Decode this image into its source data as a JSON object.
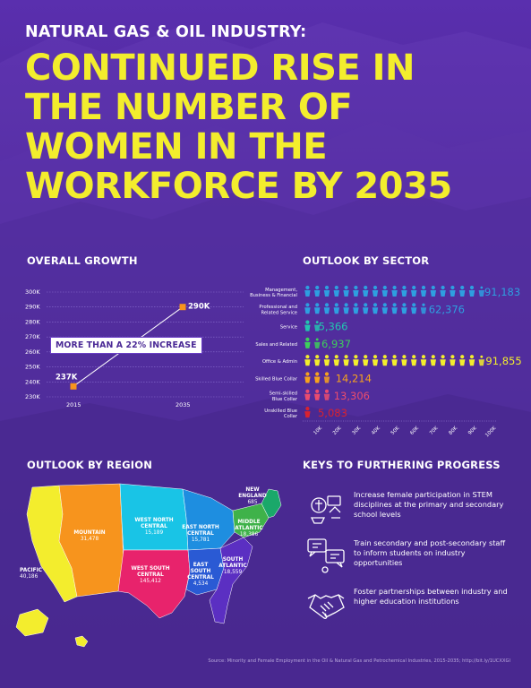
{
  "header": {
    "supertitle": "NATURAL GAS & OIL INDUSTRY:",
    "title_lines": [
      "CONTINUED RISE IN",
      "THE NUMBER OF",
      "WOMEN IN THE",
      "WORKFORCE BY 2035"
    ]
  },
  "colors": {
    "background": "#3d1f78",
    "title_yellow": "#f3ed2d",
    "growth_marker": "#f7941d"
  },
  "overall_growth": {
    "title": "OVERALL GROWTH",
    "callout": "MORE THAN A 22% INCREASE",
    "chart_data": {
      "type": "line",
      "x": [
        "2015",
        "2035"
      ],
      "values": [
        237000,
        290000
      ],
      "value_labels": [
        "237K",
        "290K"
      ],
      "yticks": [
        "300K",
        "290K",
        "280K",
        "270K",
        "260K",
        "250K",
        "240K",
        "230K"
      ],
      "ylim": [
        230000,
        300000
      ]
    }
  },
  "outlook_by_sector": {
    "title": "OUTLOOK BY SECTOR",
    "chart_data": {
      "type": "bar",
      "xticks": [
        "10K",
        "20K",
        "30K",
        "40K",
        "50K",
        "60K",
        "70K",
        "80K",
        "90K",
        "100K"
      ],
      "xlim": [
        0,
        100000
      ],
      "categories": [
        {
          "label": [
            "Management,",
            "Business & Financial"
          ],
          "value": 91183,
          "display": "91,183",
          "color": "#2e9fe0"
        },
        {
          "label": [
            "Professional and",
            "Related Service"
          ],
          "value": 62376,
          "display": "62,376",
          "color": "#2e9fe0"
        },
        {
          "label": [
            "Service"
          ],
          "value": 5366,
          "display": "5,366",
          "color": "#23c4b0"
        },
        {
          "label": [
            "Sales and Related"
          ],
          "value": 6937,
          "display": "6,937",
          "color": "#3ecf5b"
        },
        {
          "label": [
            "Office & Admin"
          ],
          "value": 91855,
          "display": "91,855",
          "color": "#f3ed2d"
        },
        {
          "label": [
            "Skilled Blue Collar"
          ],
          "value": 14214,
          "display": "14,214",
          "color": "#f7a21d"
        },
        {
          "label": [
            "Semi-skilled",
            "Blue Collar"
          ],
          "value": 13306,
          "display": "13,306",
          "color": "#ea4c6e"
        },
        {
          "label": [
            "Unskilled Blue",
            "Collar"
          ],
          "value": 5083,
          "display": "5,083",
          "color": "#d8222f"
        }
      ]
    }
  },
  "outlook_by_region": {
    "title": "OUTLOOK BY REGION",
    "regions": [
      {
        "name": [
          "PACIFIC"
        ],
        "value": "40,186",
        "color": "#f3ed2d"
      },
      {
        "name": [
          "MOUNTAIN"
        ],
        "value": "31,478",
        "color": "#f7941d"
      },
      {
        "name": [
          "WEST NORTH",
          "CENTRAL"
        ],
        "value": "15,189",
        "color": "#19c4e6"
      },
      {
        "name": [
          "WEST SOUTH",
          "CENTRAL"
        ],
        "value": "145,412",
        "color": "#e8236c"
      },
      {
        "name": [
          "EAST NORTH",
          "CENTRAL"
        ],
        "value": "15,781",
        "color": "#1e8ee0"
      },
      {
        "name": [
          "EAST",
          "SOUTH",
          "CENTRAL"
        ],
        "value": "4,534",
        "color": "#2a5ad4"
      },
      {
        "name": [
          "SOUTH",
          "ATLANTIC"
        ],
        "value": "18,559",
        "color": "#5b2fc2"
      },
      {
        "name": [
          "MIDDLE",
          "ATLANTIC"
        ],
        "value": "18,386",
        "color": "#3fb24a"
      },
      {
        "name": [
          "NEW",
          "ENGLAND"
        ],
        "value": "685",
        "color": "#1aa86a"
      }
    ]
  },
  "keys": {
    "title": "KEYS TO FURTHERING PROGRESS",
    "items": [
      {
        "icon": "stem-education-icon",
        "text": "Increase female participation in STEM disciplines at the primary and secondary school levels"
      },
      {
        "icon": "staff-training-icon",
        "text": "Train secondary and post-secondary staff to inform students on industry opportunities"
      },
      {
        "icon": "handshake-icon",
        "text": "Foster partnerships between industry and higher education institutions"
      }
    ]
  },
  "source": "Source: Minority and Female Employment in the Oil & Natural Gas and Petrochemical Industries, 2015-2035; http://bit.ly/1UCXXGl"
}
